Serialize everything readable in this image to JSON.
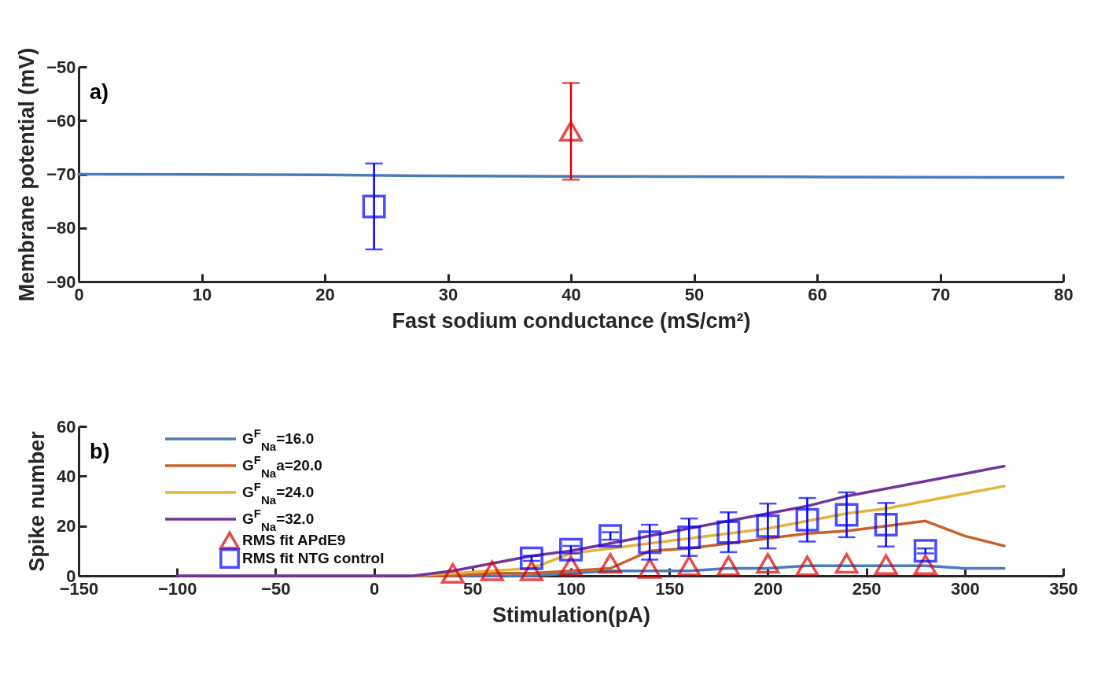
{
  "chart_data": [
    {
      "type": "line",
      "xlabel": "Fast sodium conductance (mS/cm²)",
      "ylabel": "Membrane potential (mV)",
      "xlim": [
        0,
        80
      ],
      "xticks": [
        0,
        10,
        20,
        30,
        40,
        50,
        60,
        70,
        80
      ],
      "ylim": [
        -90,
        -50
      ],
      "yticks": [
        -90,
        -80,
        -70,
        -60,
        -50
      ],
      "grid": false,
      "annotations": [
        "a)"
      ],
      "series": [
        {
          "color": "#4a7bc0",
          "x": [
            0,
            20,
            28,
            40,
            60,
            80
          ],
          "values": [
            -70,
            -70.1,
            -70.3,
            -70.4,
            -70.5,
            -70.6
          ]
        },
        {
          "type": "scatter",
          "marker": "square",
          "color": "#0000ff",
          "x": [
            24
          ],
          "values": [
            -76
          ],
          "errors": [
            8
          ]
        },
        {
          "type": "scatter",
          "marker": "triangle",
          "color": "#dd0000",
          "x": [
            40
          ],
          "values": [
            -62
          ],
          "errors": [
            9
          ]
        }
      ]
    },
    {
      "type": "line",
      "xlabel": "Stimulation(pA)",
      "ylabel": "Spike number",
      "xlim": [
        -150,
        350
      ],
      "xticks": [
        -150,
        -100,
        -50,
        0,
        50,
        100,
        150,
        200,
        250,
        300,
        350
      ],
      "ylim": [
        0,
        60
      ],
      "yticks": [
        0,
        20,
        40,
        60
      ],
      "grid": false,
      "legend": "top left",
      "annotations": [
        "b)"
      ],
      "x": [
        -100,
        -80,
        -60,
        -40,
        -20,
        0,
        20,
        40,
        60,
        80,
        100,
        120,
        140,
        160,
        180,
        200,
        220,
        240,
        260,
        280,
        300,
        320
      ],
      "series": [
        {
          "name": "G$^{F}$$_{Na}$=16.0",
          "color": "#4a7bc0",
          "values": [
            null,
            null,
            null,
            null,
            null,
            null,
            0,
            0,
            0,
            0,
            1,
            2,
            2,
            2,
            3,
            3,
            4,
            4,
            4,
            4,
            3,
            3
          ]
        },
        {
          "name": "G$^{F}$$_{Na}$a=20.0",
          "color": "#c8602a",
          "values": [
            null,
            null,
            null,
            null,
            null,
            null,
            0,
            0,
            1,
            1,
            2,
            3,
            10,
            11,
            13,
            15,
            17,
            18,
            20,
            22,
            16,
            12
          ]
        },
        {
          "name": "G$^{F}$$_{Na}$=24.0",
          "color": "#e6b23a",
          "values": [
            null,
            null,
            null,
            null,
            null,
            null,
            0,
            1,
            2,
            3,
            9,
            11,
            13,
            15,
            17,
            19,
            22,
            25,
            27,
            30,
            33,
            36
          ]
        },
        {
          "name": "G$^{F}$$_{Na}$=32.0",
          "color": "#73349a",
          "values": [
            0,
            0,
            0,
            0,
            0,
            0,
            0,
            2,
            5,
            8,
            10,
            13,
            16,
            19,
            22,
            25,
            28,
            32,
            35,
            38,
            41,
            44
          ]
        },
        {
          "type": "scatter",
          "name": "RMS fit APdE9",
          "marker": "triangle",
          "color": "#dd0000",
          "x": [
            40,
            60,
            80,
            100,
            120,
            140,
            160,
            180,
            200,
            220,
            240,
            260,
            280
          ],
          "values": [
            1,
            2,
            2,
            4,
            5,
            3,
            4,
            4,
            5,
            4,
            5,
            4.5,
            4.5
          ]
        },
        {
          "type": "scatter",
          "name": "RMS fit NTG control",
          "marker": "square",
          "color": "#0000ff",
          "x": [
            80,
            100,
            120,
            140,
            160,
            180,
            200,
            220,
            240,
            260,
            280
          ],
          "values": [
            7,
            10.5,
            16,
            13.5,
            15.5,
            17.5,
            20,
            22.5,
            24.5,
            20.5,
            10
          ],
          "errors": [
            1,
            1.5,
            1.5,
            7,
            7.5,
            8,
            9,
            8.75,
            9,
            8.75,
            1
          ]
        }
      ]
    }
  ]
}
